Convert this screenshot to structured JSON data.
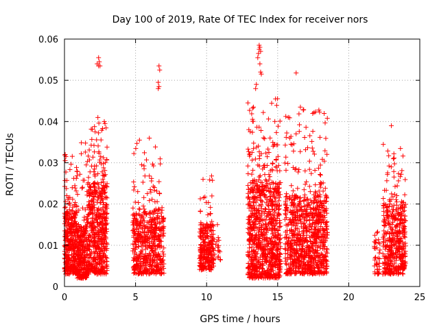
{
  "chart_data": {
    "type": "scatter",
    "title": "Day 100 of 2019, Rate Of TEC Index for receiver nors",
    "xlabel": "GPS time / hours",
    "ylabel": "ROTI / TECUs",
    "xlim": [
      0,
      25
    ],
    "ylim": [
      0,
      0.06
    ],
    "x_ticks": [
      "0",
      "5",
      "10",
      "15",
      "20",
      "25"
    ],
    "y_ticks": [
      "0",
      "0.01",
      "0.02",
      "0.03",
      "0.04",
      "0.05",
      "0.06"
    ],
    "grid": true,
    "marker": "+",
    "color": "#ff0000",
    "series": [
      {
        "name": "ROTI",
        "clusters": [
          {
            "x_range": [
              0.0,
              0.9
            ],
            "y_base": [
              0.003,
              0.018
            ],
            "y_peak": 0.032,
            "n": 380
          },
          {
            "x_range": [
              0.9,
              1.6
            ],
            "y_base": [
              0.002,
              0.015
            ],
            "y_peak": 0.035,
            "n": 260
          },
          {
            "x_range": [
              1.6,
              3.0
            ],
            "y_base": [
              0.003,
              0.025
            ],
            "y_peak": 0.04,
            "n": 560
          },
          {
            "x_range": [
              4.8,
              7.0
            ],
            "y_base": [
              0.003,
              0.018
            ],
            "y_peak": 0.036,
            "n": 560
          },
          {
            "x_range": [
              9.5,
              10.5
            ],
            "y_base": [
              0.004,
              0.015
            ],
            "y_peak": 0.03,
            "n": 260
          },
          {
            "x_range": [
              10.5,
              11.0
            ],
            "y_base": [
              0.006,
              0.012
            ],
            "y_peak": 0.016,
            "n": 18
          },
          {
            "x_range": [
              12.9,
              15.2
            ],
            "y_base": [
              0.002,
              0.025
            ],
            "y_peak": 0.046,
            "n": 900
          },
          {
            "x_range": [
              15.5,
              18.5
            ],
            "y_base": [
              0.003,
              0.022
            ],
            "y_peak": 0.043,
            "n": 900
          },
          {
            "x_range": [
              21.8,
              22.2
            ],
            "y_base": [
              0.003,
              0.013
            ],
            "y_peak": 0.017,
            "n": 40
          },
          {
            "x_range": [
              22.4,
              24.0
            ],
            "y_base": [
              0.003,
              0.02
            ],
            "y_peak": 0.035,
            "n": 440
          }
        ],
        "extremes": [
          [
            2.4,
            0.0555
          ],
          [
            2.45,
            0.0545
          ],
          [
            2.5,
            0.0535
          ],
          [
            2.3,
            0.054
          ],
          [
            2.4,
            0.0535
          ],
          [
            6.65,
            0.0535
          ],
          [
            6.7,
            0.0525
          ],
          [
            6.6,
            0.0495
          ],
          [
            6.65,
            0.0485
          ],
          [
            6.6,
            0.048
          ],
          [
            13.7,
            0.0585
          ],
          [
            13.75,
            0.058
          ],
          [
            13.7,
            0.0575
          ],
          [
            13.8,
            0.057
          ],
          [
            13.65,
            0.0565
          ],
          [
            13.6,
            0.0555
          ],
          [
            13.75,
            0.054
          ],
          [
            13.8,
            0.052
          ],
          [
            13.85,
            0.0515
          ],
          [
            13.5,
            0.049
          ],
          [
            13.45,
            0.048
          ],
          [
            14.85,
            0.0455
          ],
          [
            13.3,
            0.0435
          ],
          [
            16.3,
            0.0518
          ],
          [
            2.35,
            0.041
          ],
          [
            2.8,
            0.04
          ],
          [
            2.85,
            0.0395
          ],
          [
            17.9,
            0.0428
          ],
          [
            17.95,
            0.0423
          ],
          [
            16.6,
            0.0435
          ],
          [
            16.8,
            0.0428
          ],
          [
            23.0,
            0.039
          ],
          [
            0.05,
            0.032
          ],
          [
            0.1,
            0.0315
          ]
        ]
      }
    ]
  }
}
